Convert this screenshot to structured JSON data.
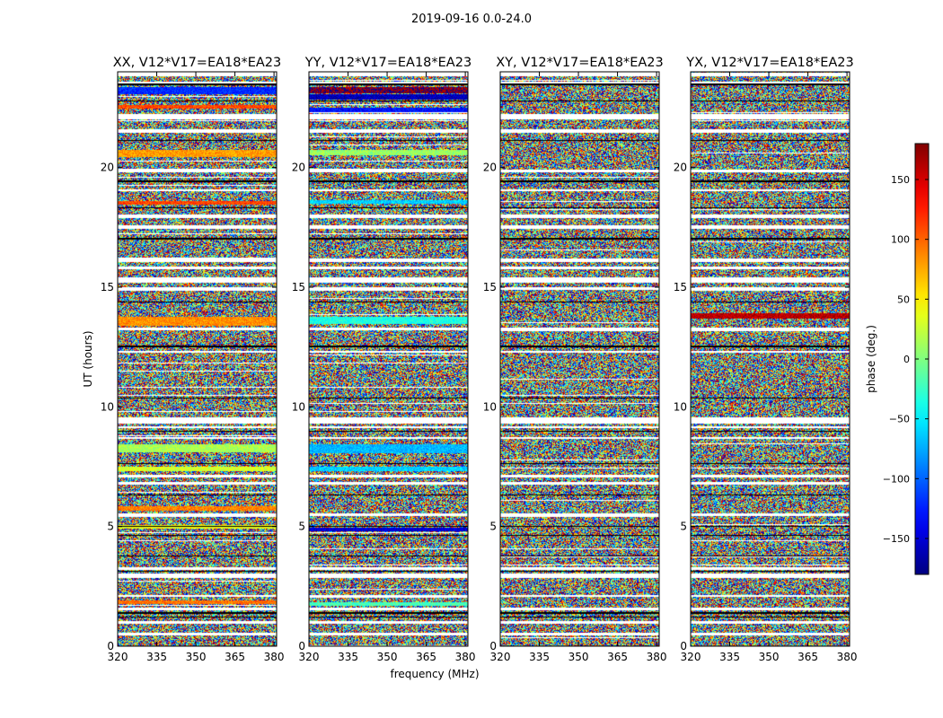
{
  "figure": {
    "suptitle": "2019-09-16 0.0-24.0"
  },
  "chart_data": [
    {
      "type": "heatmap",
      "title": "XX, V12*V17=EA18*EA23",
      "xlabel": "",
      "ylabel": "UT (hours)",
      "xlim": [
        320,
        381
      ],
      "ylim": [
        0,
        24
      ],
      "xticks": [
        320,
        335,
        350,
        365,
        380
      ],
      "yticks": [
        0,
        5,
        10,
        15,
        20
      ],
      "bands": [
        {
          "t0": 23.05,
          "t1": 23.35,
          "phase": -120
        },
        {
          "t0": 22.45,
          "t1": 22.6,
          "phase": 110
        },
        {
          "t0": 20.45,
          "t1": 20.75,
          "phase": 80
        },
        {
          "t0": 18.45,
          "t1": 18.6,
          "phase": 110
        },
        {
          "t0": 13.4,
          "t1": 13.75,
          "phase": 85
        },
        {
          "t0": 8.1,
          "t1": 8.45,
          "phase": 15
        },
        {
          "t0": 7.3,
          "t1": 7.5,
          "phase": 30
        },
        {
          "t0": 5.65,
          "t1": 5.85,
          "phase": 90
        },
        {
          "t0": 4.9,
          "t1": 5.05,
          "phase": 40
        },
        {
          "t0": 1.75,
          "t1": 1.9,
          "phase": 95
        }
      ]
    },
    {
      "type": "heatmap",
      "title": "YY, V12*V17=EA18*EA23",
      "xlabel": "frequency (MHz)",
      "ylabel": "",
      "xlim": [
        320,
        381
      ],
      "ylim": [
        0,
        24
      ],
      "xticks": [
        320,
        335,
        350,
        365,
        380
      ],
      "yticks": [
        0,
        5,
        10,
        15,
        20
      ],
      "bands": [
        {
          "t0": 23.1,
          "t1": 23.35,
          "phase": 175
        },
        {
          "t0": 22.85,
          "t1": 23.05,
          "phase": -160
        },
        {
          "t0": 22.3,
          "t1": 22.5,
          "phase": -130
        },
        {
          "t0": 20.5,
          "t1": 20.75,
          "phase": 10
        },
        {
          "t0": 18.5,
          "t1": 18.65,
          "phase": -60
        },
        {
          "t0": 13.45,
          "t1": 13.75,
          "phase": -35
        },
        {
          "t0": 8.05,
          "t1": 8.45,
          "phase": -70
        },
        {
          "t0": 7.3,
          "t1": 7.5,
          "phase": -60
        },
        {
          "t0": 4.8,
          "t1": 4.95,
          "phase": -150
        },
        {
          "t0": 1.7,
          "t1": 1.85,
          "phase": -20
        }
      ]
    },
    {
      "type": "heatmap",
      "title": "XY, V12*V17=EA18*EA23",
      "xlabel": "",
      "ylabel": "",
      "xlim": [
        320,
        381
      ],
      "ylim": [
        0,
        24
      ],
      "xticks": [
        320,
        335,
        350,
        365,
        380
      ],
      "yticks": [
        0,
        5,
        10,
        15,
        20
      ],
      "bands": []
    },
    {
      "type": "heatmap",
      "title": "YX, V12*V17=EA18*EA23",
      "xlabel": "",
      "ylabel": "",
      "xlim": [
        320,
        381
      ],
      "ylim": [
        0,
        24
      ],
      "xticks": [
        320,
        335,
        350,
        365,
        380
      ],
      "yticks": [
        0,
        5,
        10,
        15,
        20
      ],
      "bands": [
        {
          "t0": 13.7,
          "t1": 13.9,
          "phase": 160
        }
      ]
    }
  ],
  "common": {
    "flagged_white": [
      [
        23.8,
        23.95
      ],
      [
        23.5,
        23.6
      ],
      [
        22.0,
        22.25
      ],
      [
        21.45,
        21.6
      ],
      [
        19.8,
        19.9
      ],
      [
        19.0,
        19.1
      ],
      [
        17.9,
        18.05
      ],
      [
        17.45,
        17.6
      ],
      [
        16.05,
        16.2
      ],
      [
        15.75,
        15.85
      ],
      [
        15.2,
        15.4
      ],
      [
        14.9,
        15.0
      ],
      [
        13.2,
        13.3
      ],
      [
        12.25,
        12.35
      ],
      [
        9.3,
        9.55
      ],
      [
        9.1,
        9.2
      ],
      [
        8.65,
        8.75
      ],
      [
        7.05,
        7.15
      ],
      [
        6.75,
        6.85
      ],
      [
        5.45,
        5.55
      ],
      [
        3.2,
        3.3
      ],
      [
        2.85,
        3.05
      ],
      [
        2.05,
        2.15
      ],
      [
        1.5,
        1.6
      ],
      [
        0.95,
        1.05
      ],
      [
        0.45,
        0.55
      ]
    ],
    "flagged_black": [
      [
        23.45,
        23.5
      ],
      [
        22.75,
        22.8
      ],
      [
        21.1,
        21.15
      ],
      [
        19.4,
        19.45
      ],
      [
        18.3,
        18.35
      ],
      [
        17.0,
        17.05
      ],
      [
        14.35,
        14.4
      ],
      [
        12.5,
        12.55
      ],
      [
        10.35,
        10.4
      ],
      [
        8.95,
        9.0
      ],
      [
        7.6,
        7.65
      ],
      [
        6.3,
        6.35
      ],
      [
        5.0,
        5.03
      ],
      [
        4.6,
        4.65
      ],
      [
        3.75,
        3.8
      ],
      [
        3.1,
        3.15
      ],
      [
        1.35,
        1.42
      ],
      [
        1.2,
        1.25
      ]
    ]
  },
  "colorbar": {
    "label": "phase (deg.)",
    "min": -180,
    "max": 180,
    "ticks": [
      -150,
      -100,
      -50,
      0,
      50,
      100,
      150
    ],
    "tick_labels": [
      "−150",
      "−100",
      "−50",
      "0",
      "50",
      "100",
      "150"
    ],
    "colormap": "jet"
  }
}
